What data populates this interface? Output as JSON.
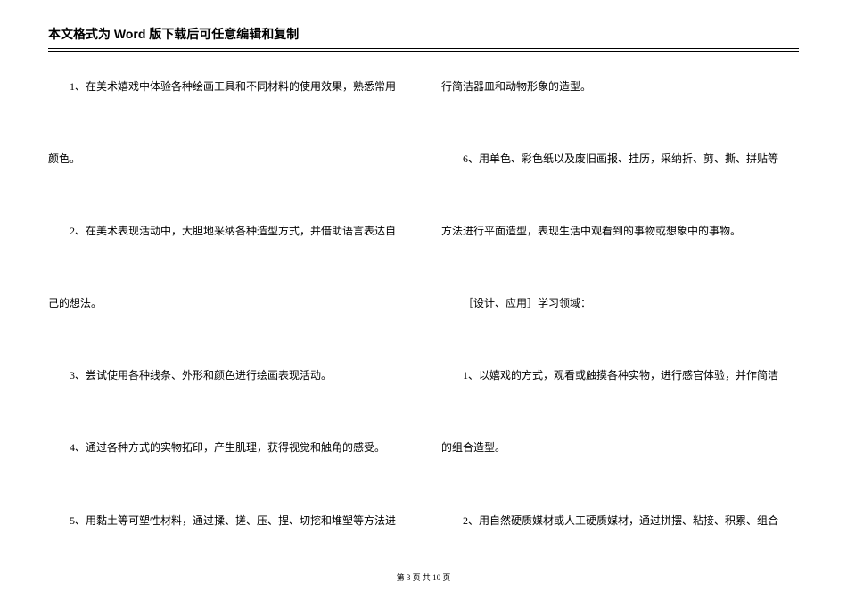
{
  "header": {
    "title": "本文格式为 Word 版下载后可任意编辑和复制"
  },
  "left": {
    "p1": "1、在美术嬉戏中体验各种绘画工具和不同材料的使用效果，熟悉常用",
    "p2": "颜色。",
    "p3": "2、在美术表现活动中，大胆地采纳各种造型方式，并借助语言表达自",
    "p4": "己的想法。",
    "p5": "3、尝试使用各种线条、外形和颜色进行绘画表现活动。",
    "p6": "4、通过各种方式的实物拓印，产生肌理，获得视觉和触角的感受。",
    "p7": "5、用黏土等可塑性材料，通过揉、搓、压、捏、切挖和堆塑等方法进"
  },
  "right": {
    "p1": "行简洁器皿和动物形象的造型。",
    "p2": "6、用单色、彩色纸以及废旧画报、挂历，采纳折、剪、撕、拼贴等",
    "p3": "方法进行平面造型，表现生活中观看到的事物或想象中的事物。",
    "p4": "［设计、应用］学习领域：",
    "p5": "1、以嬉戏的方式，观看或触摸各种实物，进行感官体验，并作简洁",
    "p6": "的组合造型。",
    "p7": "2、用自然硬质媒材或人工硬质媒材，通过拼摆、粘接、积累、组合"
  },
  "footer": {
    "text": "第 3 页 共 10 页"
  },
  "style": {
    "body_fontsize": 12,
    "header_fontsize": 14,
    "footer_fontsize": 9,
    "text_color": "#000000",
    "background_color": "#ffffff"
  }
}
